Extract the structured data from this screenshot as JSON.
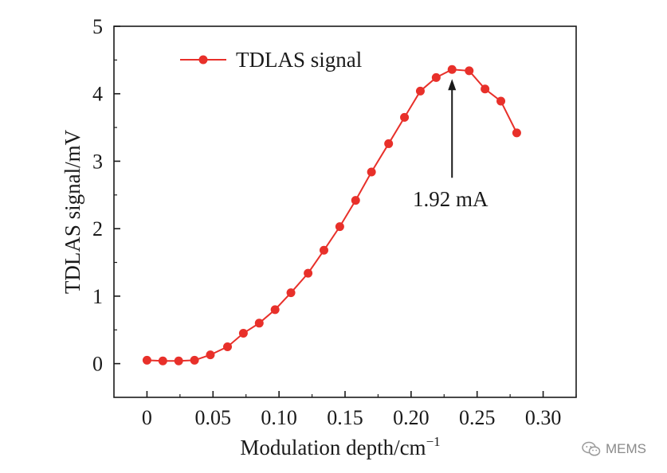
{
  "chart_data": {
    "type": "line",
    "title": "",
    "xlabel": "Modulation depth/cm",
    "xlabel_superscript": "−1",
    "ylabel": "TDLAS signal/mV",
    "xlim": [
      -0.025,
      0.325
    ],
    "ylim": [
      -0.5,
      5
    ],
    "x_ticks": [
      0,
      0.05,
      0.1,
      0.15,
      0.2,
      0.25,
      0.3
    ],
    "x_tick_labels": [
      "0",
      "0.05",
      "0.10",
      "0.15",
      "0.20",
      "0.25",
      "0.30"
    ],
    "y_ticks": [
      0,
      1,
      2,
      3,
      4,
      5
    ],
    "y_tick_labels": [
      "0",
      "1",
      "2",
      "3",
      "4",
      "5"
    ],
    "grid": false,
    "legend_position": "top-left",
    "series": [
      {
        "name": "TDLAS signal",
        "color": "#e8302a",
        "x": [
          0,
          0.012,
          0.024,
          0.036,
          0.048,
          0.061,
          0.073,
          0.085,
          0.097,
          0.109,
          0.122,
          0.134,
          0.146,
          0.158,
          0.17,
          0.183,
          0.195,
          0.207,
          0.219,
          0.231,
          0.244,
          0.256,
          0.268,
          0.28
        ],
        "values": [
          0.05,
          0.04,
          0.04,
          0.05,
          0.13,
          0.25,
          0.45,
          0.6,
          0.8,
          1.05,
          1.34,
          1.68,
          2.03,
          2.42,
          2.84,
          3.26,
          3.65,
          4.04,
          4.24,
          4.36,
          4.34,
          4.07,
          3.89,
          3.42
        ]
      }
    ],
    "annotations": [
      {
        "text": "1.92 mA",
        "x": 0.231,
        "y": 4.36,
        "arrow_to_value": [
          0.231,
          4.36
        ]
      }
    ]
  },
  "watermark": {
    "icon": "wechat-icon",
    "text": "MEMS"
  }
}
